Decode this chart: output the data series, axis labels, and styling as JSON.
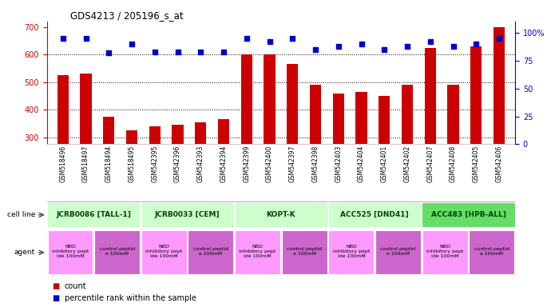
{
  "title": "GDS4213 / 205196_s_at",
  "samples": [
    "GSM518496",
    "GSM518497",
    "GSM518494",
    "GSM518495",
    "GSM542395",
    "GSM542396",
    "GSM542393",
    "GSM542394",
    "GSM542399",
    "GSM542400",
    "GSM542397",
    "GSM542398",
    "GSM542403",
    "GSM542404",
    "GSM542401",
    "GSM542402",
    "GSM542407",
    "GSM542408",
    "GSM542405",
    "GSM542406"
  ],
  "counts": [
    525,
    530,
    375,
    325,
    340,
    345,
    355,
    365,
    600,
    600,
    565,
    490,
    460,
    465,
    450,
    490,
    625,
    490,
    630,
    700
  ],
  "percentiles": [
    95,
    95,
    82,
    90,
    83,
    83,
    83,
    83,
    95,
    92,
    95,
    85,
    88,
    90,
    85,
    88,
    92,
    88,
    90,
    95
  ],
  "cell_lines": [
    {
      "label": "JCRB0086 [TALL-1]",
      "start": 0,
      "end": 4,
      "color": "#ccffcc"
    },
    {
      "label": "JCRB0033 [CEM]",
      "start": 4,
      "end": 8,
      "color": "#ccffcc"
    },
    {
      "label": "KOPT-K",
      "start": 8,
      "end": 12,
      "color": "#ccffcc"
    },
    {
      "label": "ACC525 [DND41]",
      "start": 12,
      "end": 16,
      "color": "#ccffcc"
    },
    {
      "label": "ACC483 [HPB-ALL]",
      "start": 16,
      "end": 20,
      "color": "#66dd66"
    }
  ],
  "agents": [
    {
      "label": "NBD\ninhibitory pept\nide 100mM",
      "start": 0,
      "end": 2,
      "color": "#ff99ff"
    },
    {
      "label": "control peptid\ne 100mM",
      "start": 2,
      "end": 4,
      "color": "#cc66cc"
    },
    {
      "label": "NBD\ninhibitory pept\nide 100mM",
      "start": 4,
      "end": 6,
      "color": "#ff99ff"
    },
    {
      "label": "control peptid\ne 100mM",
      "start": 6,
      "end": 8,
      "color": "#cc66cc"
    },
    {
      "label": "NBD\ninhibitory pept\nide 100mM",
      "start": 8,
      "end": 10,
      "color": "#ff99ff"
    },
    {
      "label": "control peptid\ne 100mM",
      "start": 10,
      "end": 12,
      "color": "#cc66cc"
    },
    {
      "label": "NBD\ninhibitory pept\nide 100mM",
      "start": 12,
      "end": 14,
      "color": "#ff99ff"
    },
    {
      "label": "control peptid\ne 100mM",
      "start": 14,
      "end": 16,
      "color": "#cc66cc"
    },
    {
      "label": "NBD\ninhibitory pept\nide 100mM",
      "start": 16,
      "end": 18,
      "color": "#ff99ff"
    },
    {
      "label": "control peptid\ne 100mM",
      "start": 18,
      "end": 20,
      "color": "#cc66cc"
    }
  ],
  "ylim_left": [
    275,
    720
  ],
  "ylim_right": [
    0,
    110
  ],
  "bar_color": "#cc0000",
  "dot_color": "#0000cc",
  "tick_color_left": "#cc0000",
  "tick_color_right": "#0000cc",
  "yticks_left": [
    300,
    400,
    500,
    600,
    700
  ],
  "yticks_right": [
    0,
    25,
    50,
    75,
    100
  ],
  "gridlines_at": [
    600,
    500,
    400,
    300
  ],
  "bar_width": 0.5,
  "label_fontsize": 5.5,
  "cell_line_fontsize": 6.5,
  "agent_fontsize": 4.5
}
